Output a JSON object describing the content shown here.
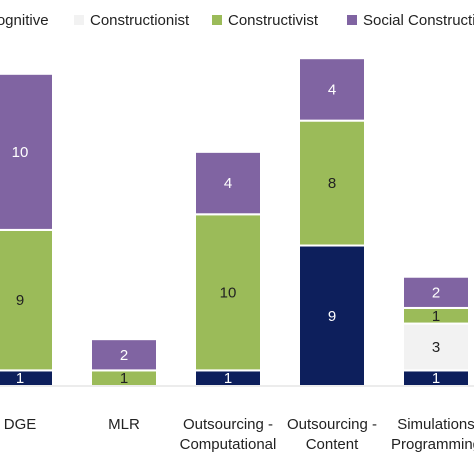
{
  "chart_data": {
    "type": "bar",
    "stacked": true,
    "title": "",
    "xlabel": "",
    "ylabel": "",
    "categories": [
      [
        "DGE"
      ],
      [
        "MLR"
      ],
      [
        "Outsourcing -",
        "Computational"
      ],
      [
        "Outsourcing -",
        "Content"
      ],
      [
        "Simulations",
        "Programming"
      ]
    ],
    "series": [
      {
        "name": "Cognitive",
        "color": "#0d1f5c",
        "label_color": "#ffffff",
        "values": [
          1,
          0,
          1,
          9,
          1
        ]
      },
      {
        "name": "Constructionist",
        "color": "#f2f2f2",
        "label_color": "#222222",
        "values": [
          0,
          0,
          0,
          0,
          3
        ]
      },
      {
        "name": "Constructivist",
        "color": "#9bbb59",
        "label_color": "#222222",
        "values": [
          9,
          1,
          10,
          8,
          1
        ]
      },
      {
        "name": "Social Constructivist",
        "color": "#8064a2",
        "label_color": "#ffffff",
        "values": [
          10,
          2,
          4,
          4,
          2
        ]
      }
    ],
    "ylim": [
      0,
      20.5
    ],
    "grid": false,
    "legend": "top"
  }
}
